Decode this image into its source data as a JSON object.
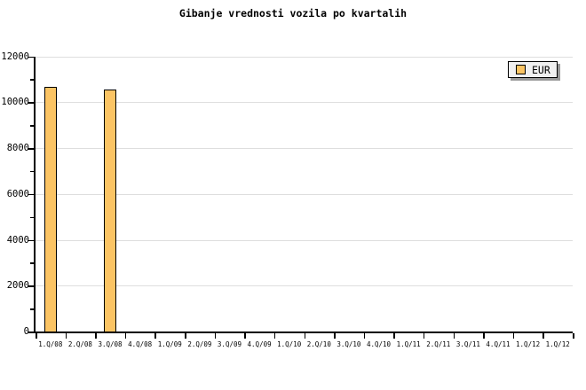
{
  "title": "Gibanje vrednosti vozila po kvartalih",
  "legend": {
    "label": "EUR",
    "position": "top-right",
    "swatch_color": "#fbc464",
    "background_color": "#f0f0f0",
    "shadow_color": "#999999"
  },
  "colors": {
    "bar_fill": "#fbc464",
    "bar_border": "#000000",
    "grid": "#dedede",
    "axis": "#000000",
    "background": "#ffffff"
  },
  "chart_data": {
    "type": "bar",
    "title": "Gibanje vrednosti vozila po kvartalih",
    "xlabel": "",
    "ylabel": "",
    "categories": [
      "1.Q/08",
      "2.Q/08",
      "3.Q/08",
      "4.Q/08",
      "1.Q/09",
      "2.Q/09",
      "3.Q/09",
      "4.Q/09",
      "1.Q/10",
      "2.Q/10",
      "3.Q/10",
      "4.Q/10",
      "1.Q/11",
      "2.Q/11",
      "3.Q/11",
      "4.Q/11",
      "1.Q/12",
      "1.Q/12"
    ],
    "series": [
      {
        "name": "EUR",
        "values": [
          10650,
          0,
          10550,
          0,
          0,
          0,
          0,
          0,
          0,
          0,
          0,
          0,
          0,
          0,
          0,
          0,
          0,
          0
        ]
      }
    ],
    "ylim": [
      0,
      12000
    ],
    "y_ticks": [
      0,
      2000,
      4000,
      6000,
      8000,
      10000,
      12000
    ],
    "y_minor_ticks": [
      1000,
      3000,
      5000,
      7000,
      9000,
      11000
    ],
    "grid": "horizontal-major",
    "legend_position": "top-right"
  }
}
